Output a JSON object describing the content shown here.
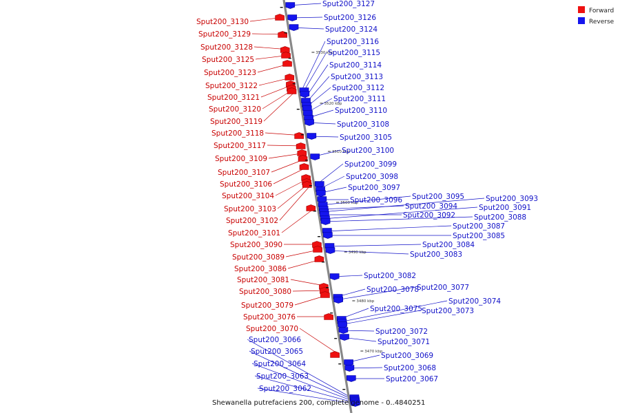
{
  "caption": "Shewanella putrefaciens 200, complete genome - 0..4840251",
  "colors": {
    "forward": "#ee1111",
    "forward_dark": "#a00000",
    "reverse": "#1515ee",
    "reverse_dark": "#00009a",
    "backbone": "#888888",
    "forward_label": "#c80000",
    "reverse_label": "#1010c8"
  },
  "legend": {
    "forward_label": "Forward",
    "reverse_label": "Reverse"
  },
  "ticks": [
    "3530 kbp",
    "3520 kbp",
    "3510 kbp",
    "3500 kbp",
    "3490 kbp",
    "3480 kbp",
    "3470 kbp"
  ],
  "forward_genes": [
    "Sput200_3130",
    "Sput200_3129",
    "Sput200_3128",
    "Sput200_3125",
    "Sput200_3123",
    "Sput200_3122",
    "Sput200_3121",
    "Sput200_3120",
    "Sput200_3119",
    "Sput200_3118",
    "Sput200_3117",
    "Sput200_3109",
    "Sput200_3107",
    "Sput200_3106",
    "Sput200_3104",
    "Sput200_3103",
    "Sput200_3102",
    "Sput200_3101",
    "Sput200_3090",
    "Sput200_3089",
    "Sput200_3086",
    "Sput200_3081",
    "Sput200_3080",
    "Sput200_3079",
    "Sput200_3076",
    "Sput200_3070"
  ],
  "reverse_genes": [
    "Sput200_3127",
    "Sput200_3126",
    "Sput200_3124",
    "Sput200_3116",
    "Sput200_3115",
    "Sput200_3114",
    "Sput200_3113",
    "Sput200_3112",
    "Sput200_3111",
    "Sput200_3110",
    "Sput200_3108",
    "Sput200_3105",
    "Sput200_3100",
    "Sput200_3099",
    "Sput200_3098",
    "Sput200_3097",
    "Sput200_3096",
    "Sput200_3095",
    "Sput200_3094",
    "Sput200_3093",
    "Sput200_3092",
    "Sput200_3091",
    "Sput200_3088",
    "Sput200_3087",
    "Sput200_3085",
    "Sput200_3084",
    "Sput200_3083",
    "Sput200_3082",
    "Sput200_3078",
    "Sput200_3077",
    "Sput200_3075",
    "Sput200_3074",
    "Sput200_3073",
    "Sput200_3072",
    "Sput200_3071",
    "Sput200_3069",
    "Sput200_3068",
    "Sput200_3067",
    "Sput200_3066",
    "Sput200_3065",
    "Sput200_3064",
    "Sput200_3063",
    "Sput200_3062"
  ]
}
